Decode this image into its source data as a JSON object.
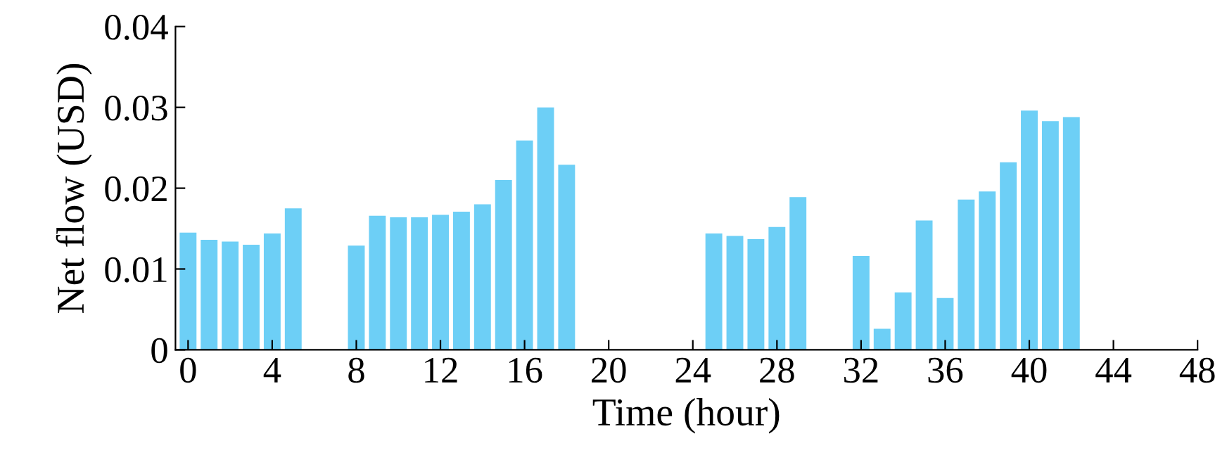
{
  "chart_data": {
    "type": "bar",
    "xlabel": "Time (hour)",
    "ylabel": "Net flow (USD)",
    "x": [
      0,
      1,
      2,
      3,
      4,
      5,
      8,
      9,
      10,
      11,
      12,
      13,
      14,
      15,
      16,
      17,
      18,
      25,
      26,
      27,
      28,
      29,
      32,
      33,
      34,
      35,
      36,
      37,
      38,
      39,
      40,
      41,
      42
    ],
    "values": [
      0.0145,
      0.0136,
      0.0134,
      0.013,
      0.0144,
      0.0175,
      0.0129,
      0.0166,
      0.0164,
      0.0164,
      0.0167,
      0.0171,
      0.018,
      0.021,
      0.0259,
      0.03,
      0.0229,
      0.0144,
      0.0141,
      0.0137,
      0.0152,
      0.0189,
      0.0116,
      0.0026,
      0.0071,
      0.016,
      0.0064,
      0.0186,
      0.0196,
      0.0232,
      0.0296,
      0.0283,
      0.0288
    ],
    "color": "#6dcff6",
    "xlim": [
      -0.6,
      48
    ],
    "xticks": [
      0,
      4,
      8,
      12,
      16,
      20,
      24,
      28,
      32,
      36,
      40,
      44,
      48
    ],
    "ylim": [
      0,
      0.04
    ],
    "yticks": [
      0,
      0.01,
      0.02,
      0.03,
      0.04
    ],
    "grid": false,
    "legend": false
  }
}
